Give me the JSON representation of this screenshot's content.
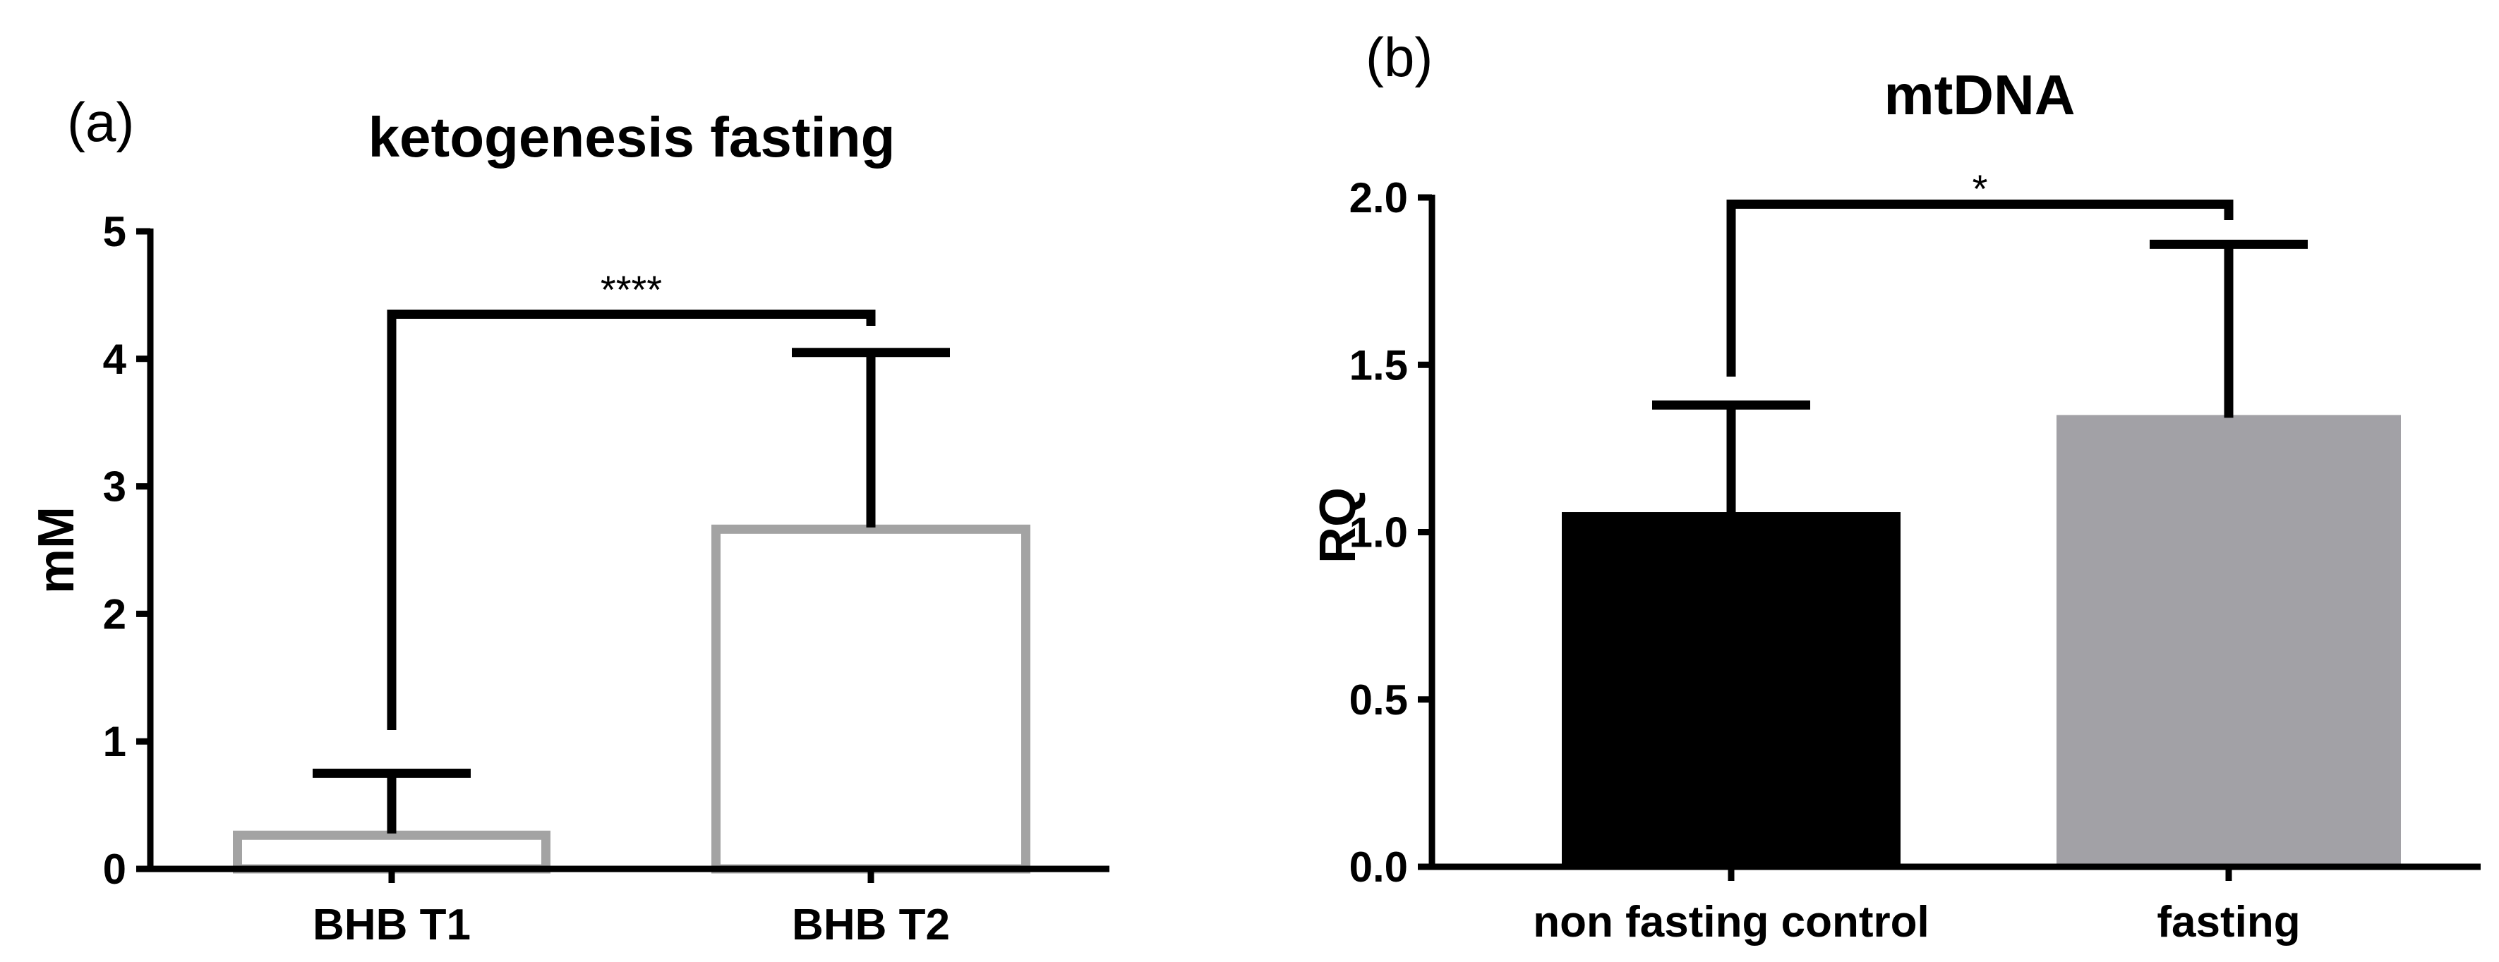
{
  "chart_data": [
    {
      "type": "bar",
      "panel_label": "(a)",
      "title": "ketogenesis fasting",
      "xlabel": "",
      "ylabel": "mM",
      "ylim": [
        0,
        5
      ],
      "yticks": [
        0,
        1,
        2,
        3,
        4,
        5
      ],
      "ytick_labels": [
        "0",
        "1",
        "2",
        "3",
        "4",
        "5"
      ],
      "categories": [
        "BHB T1",
        "BHB T2"
      ],
      "values": [
        0.3,
        2.7
      ],
      "errors": [
        0.45,
        1.35
      ],
      "bar_style": "outline",
      "bar_colors": [
        "#a3a3a3",
        "#a3a3a3"
      ],
      "significance": {
        "label": "****",
        "from": 0,
        "to": 1,
        "y": 4.35
      }
    },
    {
      "type": "bar",
      "panel_label": "(b)",
      "title": "mtDNA",
      "xlabel": "",
      "ylabel": "RQ",
      "ylim": [
        0,
        2.0
      ],
      "yticks": [
        0,
        0.5,
        1.0,
        1.5,
        2.0
      ],
      "ytick_labels": [
        "0.0",
        "0.5",
        "1.0",
        "1.5",
        "2.0"
      ],
      "categories": [
        "non fasting control",
        "fasting"
      ],
      "values": [
        1.06,
        1.35
      ],
      "errors": [
        0.32,
        0.51
      ],
      "bar_style": "filled",
      "bar_colors": [
        "#000000",
        "#a2a1a6"
      ],
      "significance": {
        "label": "*",
        "from": 0,
        "to": 1,
        "y": 1.98
      }
    }
  ]
}
